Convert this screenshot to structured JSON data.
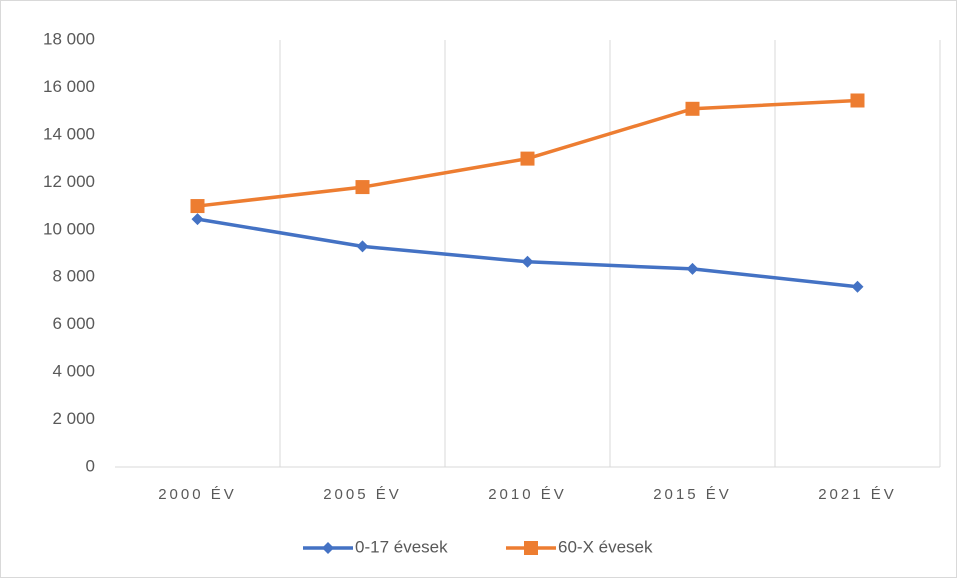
{
  "chart_data": {
    "type": "line",
    "categories": [
      "2000 ÉV",
      "2005 ÉV",
      "2010 ÉV",
      "2015 ÉV",
      "2021 ÉV"
    ],
    "series": [
      {
        "name": "0-17 évesek",
        "color": "#4472c4",
        "marker": "diamond",
        "values": [
          10450,
          9300,
          8650,
          8350,
          7600
        ]
      },
      {
        "name": "60-X évesek",
        "color": "#ed7d31",
        "marker": "square",
        "values": [
          11000,
          11800,
          13000,
          15100,
          15450
        ]
      }
    ],
    "ylim": [
      0,
      18000
    ],
    "yticks": [
      0,
      {
        "value": 2000,
        "label": "2 000"
      },
      {
        "value": 4000,
        "label": "4 000"
      },
      {
        "value": 6000,
        "label": "6 000"
      },
      {
        "value": 8000,
        "label": "8 000"
      },
      {
        "value": 10000,
        "label": "10 000"
      },
      {
        "value": 12000,
        "label": "12 000"
      },
      {
        "value": 14000,
        "label": "14 000"
      },
      {
        "value": 16000,
        "label": "16 000"
      },
      {
        "value": 18000,
        "label": "18 000"
      }
    ],
    "legend": "bottom"
  }
}
